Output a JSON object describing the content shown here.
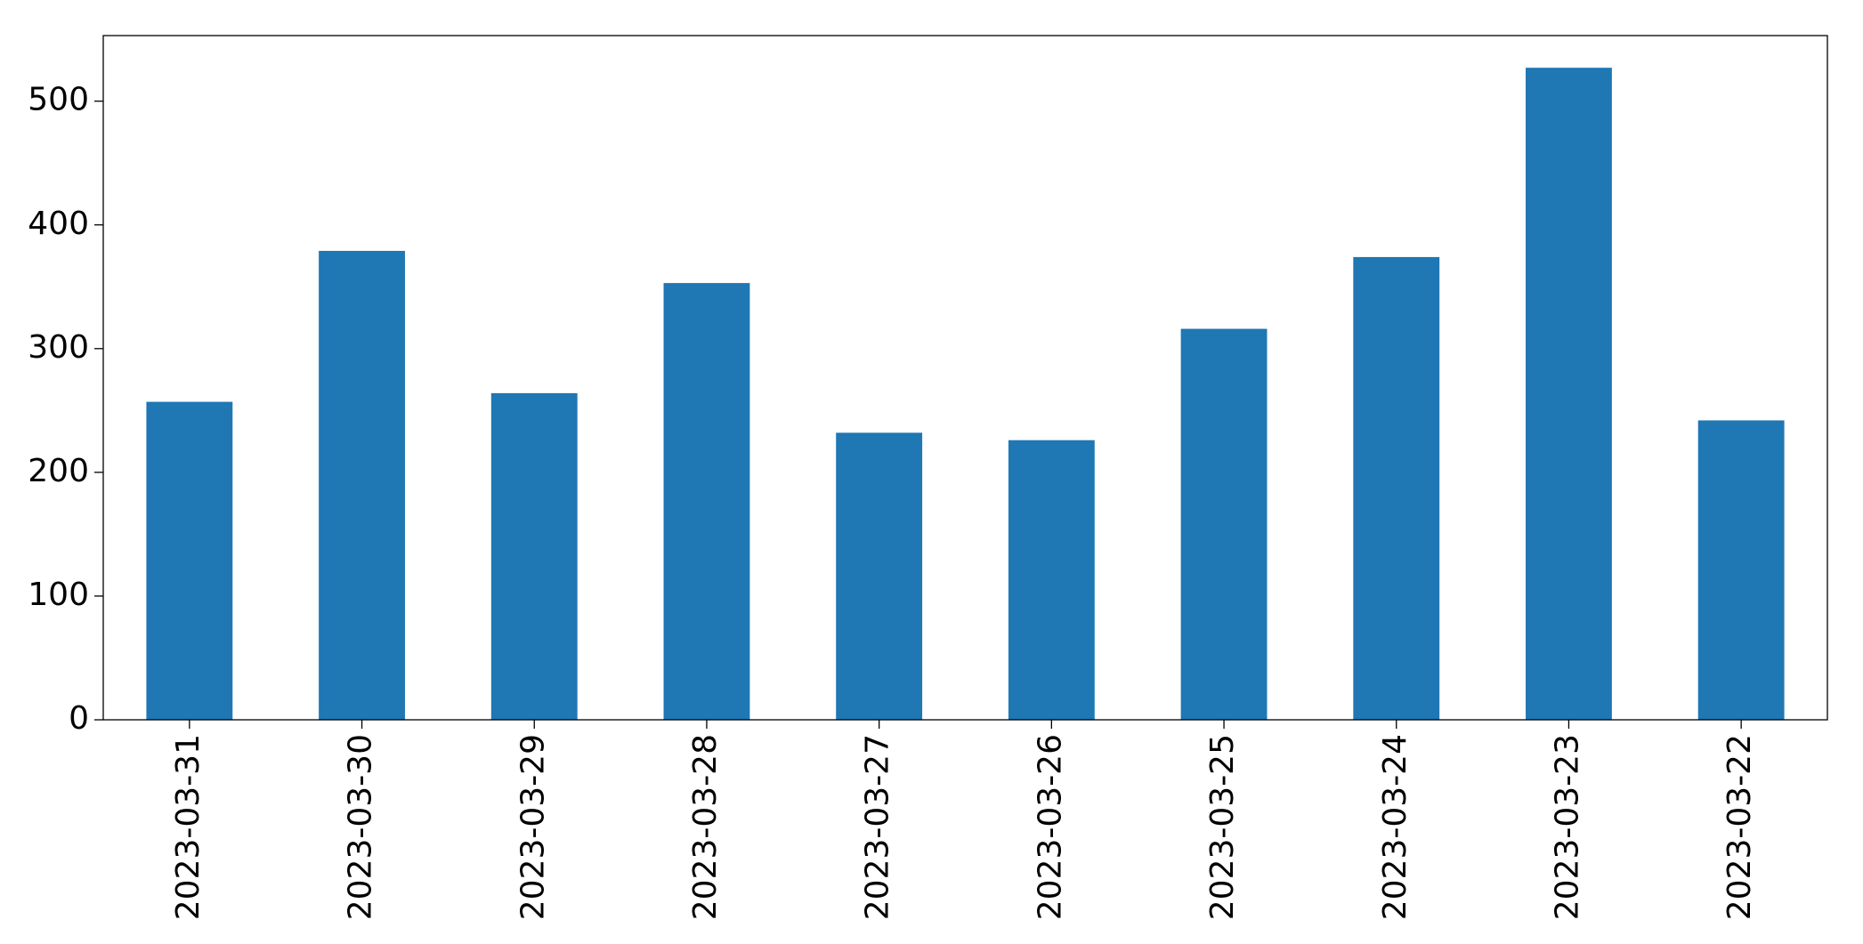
{
  "chart_data": {
    "type": "bar",
    "categories": [
      "2023-03-31",
      "2023-03-30",
      "2023-03-29",
      "2023-03-28",
      "2023-03-27",
      "2023-03-26",
      "2023-03-25",
      "2023-03-24",
      "2023-03-23",
      "2023-03-22"
    ],
    "values": [
      257,
      379,
      264,
      353,
      232,
      226,
      316,
      374,
      527,
      242
    ],
    "color": "#1f77b4",
    "ylim": [
      0,
      553
    ],
    "yticks": [
      0,
      100,
      200,
      300,
      400,
      500
    ],
    "grid": false
  }
}
